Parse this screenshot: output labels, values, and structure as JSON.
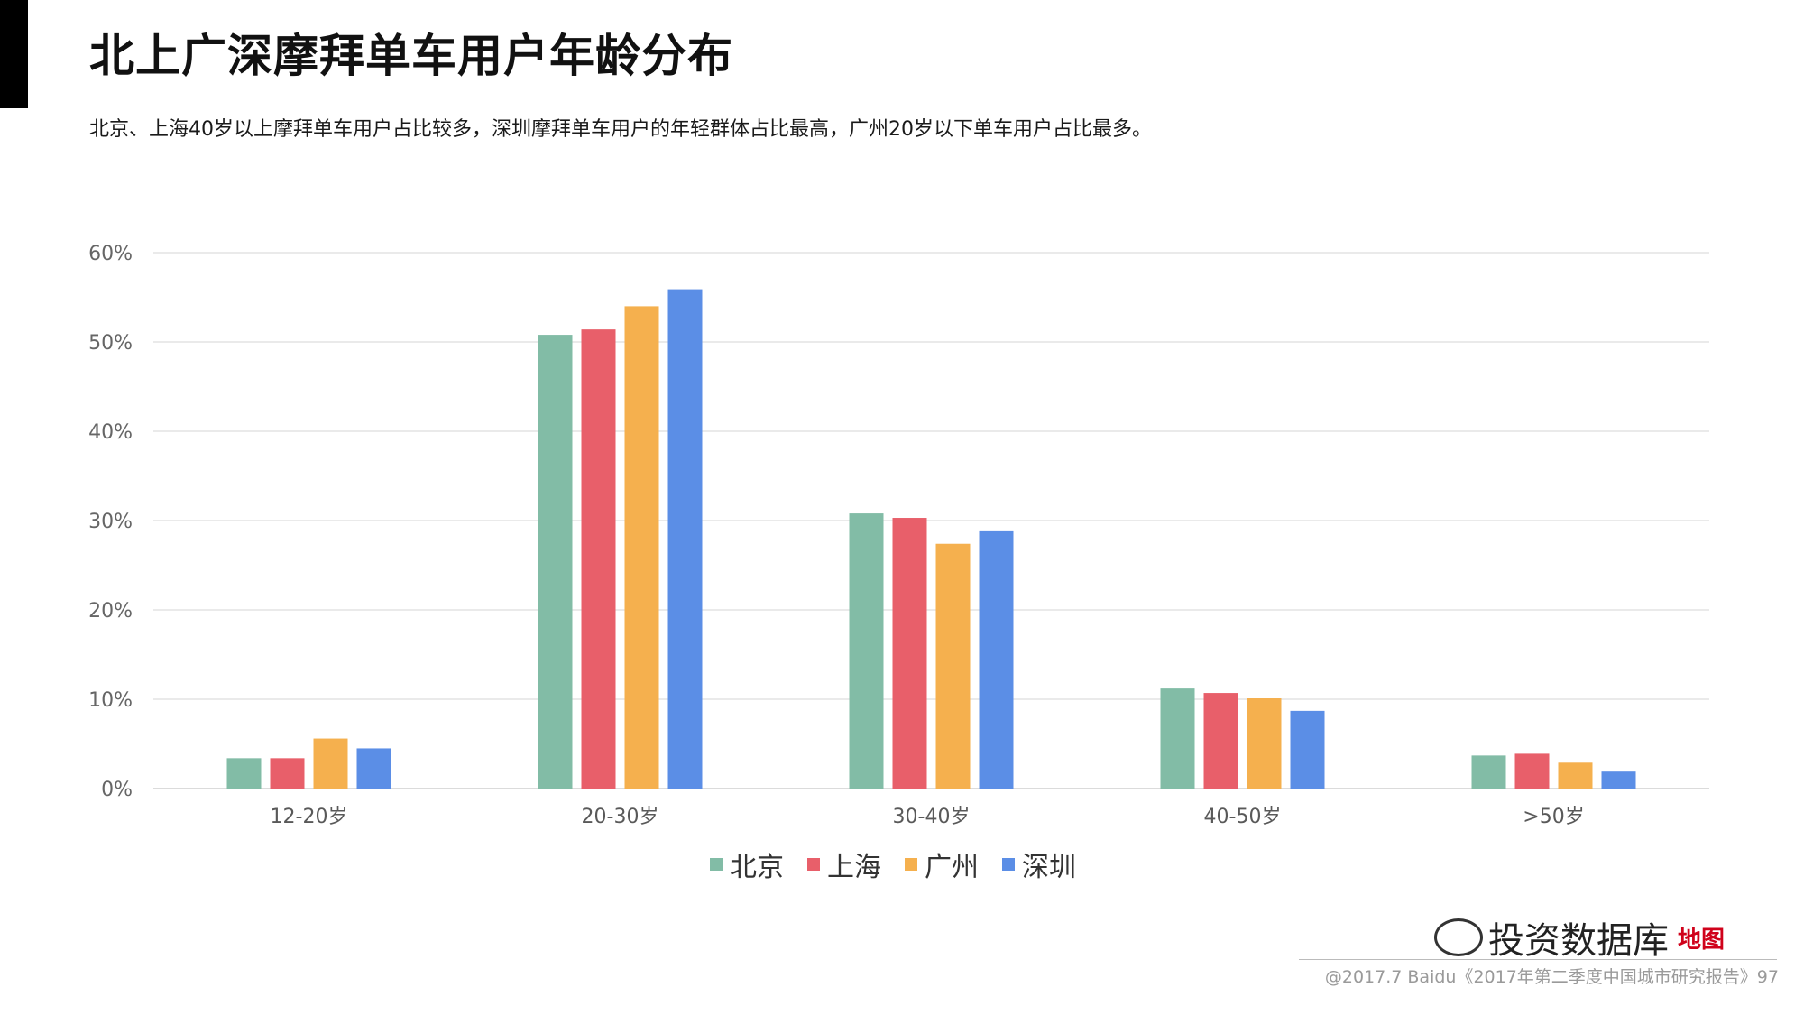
{
  "page": {
    "title": "北上广深摩拜单车用户年龄分布",
    "subtitle": "北京、上海40岁以上摩拜单车用户占比较多，深圳摩拜单车用户的年轻群体占比最高，广州20岁以下单车用户占比最多。",
    "footer": "@2017.7 Baidu《2017年第二季度中国城市研究报告》97",
    "watermark": "投资数据库",
    "watermark_badge": "地图"
  },
  "colors": {
    "beijing": "#82bca6",
    "shanghai": "#e85f6a",
    "guangzhou": "#f5b04e",
    "shenzhen": "#5b8ee6",
    "grid": "#e3e3e3",
    "accent": "#000000"
  },
  "chart_data": {
    "type": "bar",
    "title": "",
    "xlabel": "",
    "ylabel": "",
    "categories": [
      "12-20岁",
      "20-30岁",
      "30-40岁",
      "40-50岁",
      ">50岁"
    ],
    "series": [
      {
        "name": "北京",
        "values": [
          3.4,
          50.8,
          30.8,
          11.2,
          3.7
        ]
      },
      {
        "name": "上海",
        "values": [
          3.4,
          51.4,
          30.3,
          10.7,
          3.9
        ]
      },
      {
        "name": "广州",
        "values": [
          5.6,
          54.0,
          27.4,
          10.1,
          2.9
        ]
      },
      {
        "name": "深圳",
        "values": [
          4.5,
          55.9,
          28.9,
          8.7,
          1.9
        ]
      }
    ],
    "y_ticks": [
      "0%",
      "10%",
      "20%",
      "30%",
      "40%",
      "50%",
      "60%"
    ],
    "ylim": [
      0,
      60
    ],
    "grid": true,
    "legend_position": "bottom-center"
  }
}
